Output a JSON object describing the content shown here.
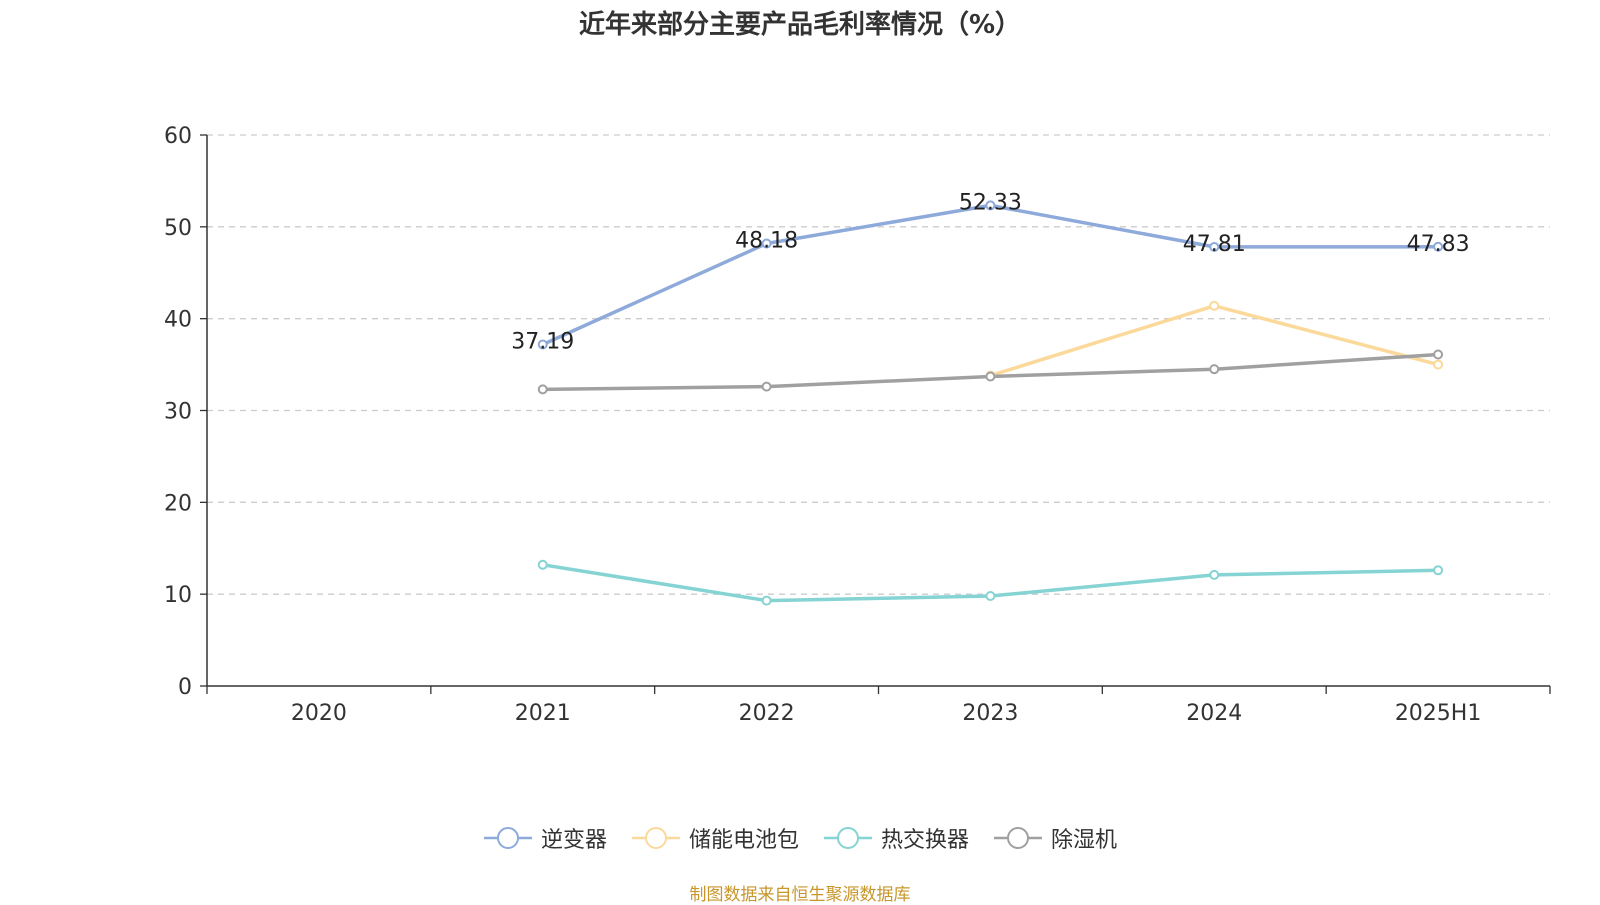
{
  "chart_data": {
    "type": "line",
    "title": "近年来部分主要产品毛利率情况（%）",
    "categories": [
      "2020",
      "2021",
      "2022",
      "2023",
      "2024",
      "2025H1"
    ],
    "ylim": [
      0,
      60
    ],
    "yticks": [
      0,
      10,
      20,
      30,
      40,
      50,
      60
    ],
    "grid": true,
    "legend_position": "bottom",
    "series": [
      {
        "name": "逆变器",
        "color": "#8eaadb",
        "values": [
          null,
          37.19,
          48.18,
          52.33,
          47.81,
          47.83
        ],
        "labels": [
          null,
          "37.19",
          "48.18",
          "52.33",
          "47.81",
          "47.83"
        ]
      },
      {
        "name": "储能电池包",
        "color": "#fbd99a",
        "values": [
          null,
          null,
          null,
          33.8,
          41.4,
          35.0
        ]
      },
      {
        "name": "热交换器",
        "color": "#85d3d3",
        "values": [
          null,
          13.2,
          9.3,
          9.8,
          12.1,
          12.6
        ]
      },
      {
        "name": "除湿机",
        "color": "#a0a0a0",
        "values": [
          null,
          32.3,
          32.6,
          33.7,
          34.5,
          36.1
        ]
      }
    ]
  },
  "source": "制图数据来自恒生聚源数据库"
}
